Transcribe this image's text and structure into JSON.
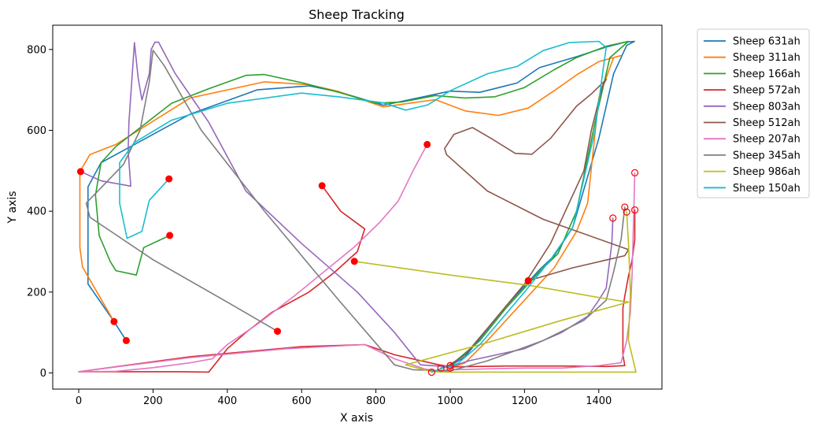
{
  "chart_data": {
    "type": "line",
    "title": "Sheep Tracking",
    "xlabel": "X axis",
    "ylabel": "Y axis",
    "xlim": [
      -70,
      1570
    ],
    "ylim": [
      -40,
      860
    ],
    "xticks": [
      0,
      200,
      400,
      600,
      800,
      1000,
      1200,
      1400
    ],
    "yticks": [
      0,
      200,
      400,
      600,
      800
    ],
    "grid": false,
    "legend_position": "outside-top-right",
    "start_marker": "filled red circle",
    "end_marker": "hollow red circle",
    "series": [
      {
        "name": "Sheep 631ah",
        "color": "#1f77b4",
        "points": [
          [
            128,
            80
          ],
          [
            95,
            127
          ],
          [
            25,
            220
          ],
          [
            25,
            460
          ],
          [
            60,
            520
          ],
          [
            150,
            565
          ],
          [
            300,
            640
          ],
          [
            480,
            700
          ],
          [
            620,
            710
          ],
          [
            700,
            695
          ],
          [
            820,
            662
          ],
          [
            1000,
            697
          ],
          [
            1080,
            694
          ],
          [
            1180,
            717
          ],
          [
            1240,
            755
          ],
          [
            1340,
            782
          ],
          [
            1420,
            806
          ],
          [
            1470,
            818
          ],
          [
            1496,
            820
          ],
          [
            1475,
            810
          ],
          [
            1440,
            740
          ],
          [
            1400,
            580
          ],
          [
            1330,
            360
          ],
          [
            1280,
            290
          ],
          [
            1240,
            255
          ],
          [
            1150,
            165
          ],
          [
            1040,
            40
          ],
          [
            1000,
            18
          ]
        ]
      },
      {
        "name": "Sheep 311ah",
        "color": "#ff7f0e",
        "points": [
          [
            95,
            127
          ],
          [
            10,
            262
          ],
          [
            3,
            310
          ],
          [
            3,
            498
          ],
          [
            30,
            540
          ],
          [
            100,
            565
          ],
          [
            300,
            680
          ],
          [
            500,
            720
          ],
          [
            620,
            713
          ],
          [
            700,
            696
          ],
          [
            820,
            658
          ],
          [
            960,
            676
          ],
          [
            1040,
            648
          ],
          [
            1130,
            637
          ],
          [
            1210,
            655
          ],
          [
            1280,
            698
          ],
          [
            1340,
            737
          ],
          [
            1400,
            770
          ],
          [
            1460,
            785
          ],
          [
            1440,
            780
          ],
          [
            1400,
            680
          ],
          [
            1370,
            420
          ],
          [
            1340,
            350
          ],
          [
            1280,
            260
          ],
          [
            1200,
            180
          ],
          [
            1100,
            80
          ],
          [
            1040,
            25
          ],
          [
            1000,
            12
          ]
        ]
      },
      {
        "name": "Sheep 166ah",
        "color": "#2ca02c",
        "points": [
          [
            245,
            340
          ],
          [
            175,
            310
          ],
          [
            155,
            242
          ],
          [
            100,
            253
          ],
          [
            85,
            275
          ],
          [
            55,
            340
          ],
          [
            45,
            440
          ],
          [
            60,
            520
          ],
          [
            100,
            560
          ],
          [
            250,
            667
          ],
          [
            350,
            703
          ],
          [
            450,
            736
          ],
          [
            500,
            738
          ],
          [
            600,
            718
          ],
          [
            700,
            694
          ],
          [
            800,
            667
          ],
          [
            870,
            670
          ],
          [
            960,
            686
          ],
          [
            1040,
            680
          ],
          [
            1120,
            683
          ],
          [
            1200,
            706
          ],
          [
            1280,
            750
          ],
          [
            1340,
            780
          ],
          [
            1420,
            808
          ],
          [
            1480,
            820
          ],
          [
            1430,
            780
          ],
          [
            1390,
            620
          ],
          [
            1340,
            400
          ],
          [
            1290,
            295
          ],
          [
            1240,
            250
          ],
          [
            1150,
            160
          ],
          [
            1080,
            80
          ],
          [
            1000,
            18
          ]
        ]
      },
      {
        "name": "Sheep 572ah",
        "color": "#d62728",
        "points": [
          [
            655,
            463
          ],
          [
            705,
            400
          ],
          [
            770,
            356
          ],
          [
            750,
            300
          ],
          [
            690,
            250
          ],
          [
            620,
            200
          ],
          [
            520,
            150
          ],
          [
            450,
            100
          ],
          [
            400,
            60
          ],
          [
            350,
            2
          ],
          [
            270,
            3
          ],
          [
            150,
            3
          ],
          [
            0,
            3
          ],
          [
            300,
            40
          ],
          [
            600,
            65
          ],
          [
            770,
            70
          ],
          [
            850,
            45
          ],
          [
            970,
            20
          ],
          [
            1000,
            15
          ],
          [
            1150,
            17
          ],
          [
            1300,
            17
          ],
          [
            1420,
            16
          ],
          [
            1470,
            18
          ],
          [
            1465,
            45
          ],
          [
            1465,
            160
          ],
          [
            1470,
            190
          ],
          [
            1480,
            240
          ],
          [
            1490,
            280
          ],
          [
            1497,
            330
          ],
          [
            1497,
            403
          ]
        ]
      },
      {
        "name": "Sheep 803ah",
        "color": "#9467bd",
        "points": [
          [
            5,
            498
          ],
          [
            60,
            475
          ],
          [
            140,
            462
          ],
          [
            133,
            550
          ],
          [
            135,
            620
          ],
          [
            150,
            817
          ],
          [
            160,
            730
          ],
          [
            170,
            675
          ],
          [
            190,
            740
          ],
          [
            195,
            800
          ],
          [
            205,
            818
          ],
          [
            215,
            818
          ],
          [
            260,
            740
          ],
          [
            350,
            620
          ],
          [
            450,
            450
          ],
          [
            600,
            320
          ],
          [
            750,
            200
          ],
          [
            850,
            100
          ],
          [
            920,
            20
          ],
          [
            1000,
            15
          ],
          [
            1050,
            30
          ],
          [
            1200,
            60
          ],
          [
            1300,
            100
          ],
          [
            1370,
            140
          ],
          [
            1400,
            180
          ],
          [
            1420,
            210
          ],
          [
            1435,
            320
          ],
          [
            1438,
            383
          ]
        ]
      },
      {
        "name": "Sheep 512ah",
        "color": "#8c564b",
        "points": [
          [
            1210,
            228
          ],
          [
            1330,
            260
          ],
          [
            1470,
            290
          ],
          [
            1480,
            305
          ],
          [
            1250,
            380
          ],
          [
            1100,
            450
          ],
          [
            990,
            540
          ],
          [
            985,
            555
          ],
          [
            1010,
            590
          ],
          [
            1060,
            607
          ],
          [
            1110,
            580
          ],
          [
            1175,
            543
          ],
          [
            1220,
            541
          ],
          [
            1270,
            580
          ],
          [
            1340,
            660
          ],
          [
            1380,
            690
          ],
          [
            1420,
            726
          ],
          [
            1410,
            710
          ],
          [
            1380,
            600
          ],
          [
            1360,
            500
          ],
          [
            1310,
            400
          ],
          [
            1270,
            320
          ],
          [
            1200,
            220
          ],
          [
            1100,
            110
          ],
          [
            1040,
            45
          ],
          [
            990,
            15
          ],
          [
            975,
            12
          ]
        ]
      },
      {
        "name": "Sheep 207ah",
        "color": "#e377c2",
        "points": [
          [
            938,
            565
          ],
          [
            900,
            500
          ],
          [
            860,
            425
          ],
          [
            810,
            372
          ],
          [
            740,
            310
          ],
          [
            660,
            250
          ],
          [
            580,
            190
          ],
          [
            480,
            120
          ],
          [
            400,
            70
          ],
          [
            360,
            35
          ],
          [
            300,
            25
          ],
          [
            200,
            13
          ],
          [
            100,
            4
          ],
          [
            0,
            3
          ],
          [
            300,
            38
          ],
          [
            560,
            60
          ],
          [
            770,
            70
          ],
          [
            850,
            35
          ],
          [
            930,
            10
          ],
          [
            960,
            5
          ],
          [
            1000,
            8
          ],
          [
            1100,
            10
          ],
          [
            1200,
            12
          ],
          [
            1300,
            12
          ],
          [
            1400,
            18
          ],
          [
            1460,
            25
          ],
          [
            1475,
            80
          ],
          [
            1485,
            150
          ],
          [
            1490,
            250
          ],
          [
            1497,
            495
          ]
        ]
      },
      {
        "name": "Sheep 345ah",
        "color": "#7f7f7f",
        "points": [
          [
            535,
            103
          ],
          [
            400,
            175
          ],
          [
            200,
            280
          ],
          [
            30,
            385
          ],
          [
            20,
            420
          ],
          [
            120,
            515
          ],
          [
            165,
            600
          ],
          [
            190,
            720
          ],
          [
            200,
            798
          ],
          [
            230,
            760
          ],
          [
            330,
            600
          ],
          [
            500,
            400
          ],
          [
            700,
            180
          ],
          [
            850,
            20
          ],
          [
            900,
            8
          ],
          [
            1000,
            5
          ],
          [
            1100,
            30
          ],
          [
            1250,
            80
          ],
          [
            1360,
            130
          ],
          [
            1420,
            180
          ],
          [
            1440,
            250
          ],
          [
            1460,
            330
          ],
          [
            1470,
            410
          ]
        ]
      },
      {
        "name": "Sheep 986ah",
        "color": "#bcbd22",
        "points": [
          [
            742,
            276
          ],
          [
            1000,
            242
          ],
          [
            1210,
            217
          ],
          [
            1410,
            185
          ],
          [
            1480,
            175
          ],
          [
            1300,
            130
          ],
          [
            1100,
            75
          ],
          [
            880,
            20
          ],
          [
            950,
            3
          ],
          [
            1000,
            2
          ],
          [
            1200,
            2
          ],
          [
            1400,
            2
          ],
          [
            1500,
            2
          ],
          [
            1480,
            80
          ],
          [
            1485,
            200
          ],
          [
            1480,
            320
          ],
          [
            1475,
            398
          ]
        ]
      },
      {
        "name": "Sheep 150ah",
        "color": "#17becf",
        "points": [
          [
            243,
            480
          ],
          [
            190,
            427
          ],
          [
            170,
            350
          ],
          [
            130,
            333
          ],
          [
            110,
            420
          ],
          [
            110,
            520
          ],
          [
            150,
            570
          ],
          [
            250,
            625
          ],
          [
            400,
            667
          ],
          [
            600,
            692
          ],
          [
            700,
            683
          ],
          [
            820,
            668
          ],
          [
            880,
            650
          ],
          [
            940,
            663
          ],
          [
            1000,
            698
          ],
          [
            1100,
            740
          ],
          [
            1180,
            758
          ],
          [
            1250,
            797
          ],
          [
            1320,
            817
          ],
          [
            1400,
            820
          ],
          [
            1420,
            805
          ],
          [
            1410,
            740
          ],
          [
            1390,
            600
          ],
          [
            1330,
            360
          ],
          [
            1270,
            280
          ],
          [
            1200,
            200
          ],
          [
            1080,
            70
          ],
          [
            1020,
            23
          ],
          [
            980,
            12
          ],
          [
            950,
            2
          ]
        ]
      }
    ]
  }
}
